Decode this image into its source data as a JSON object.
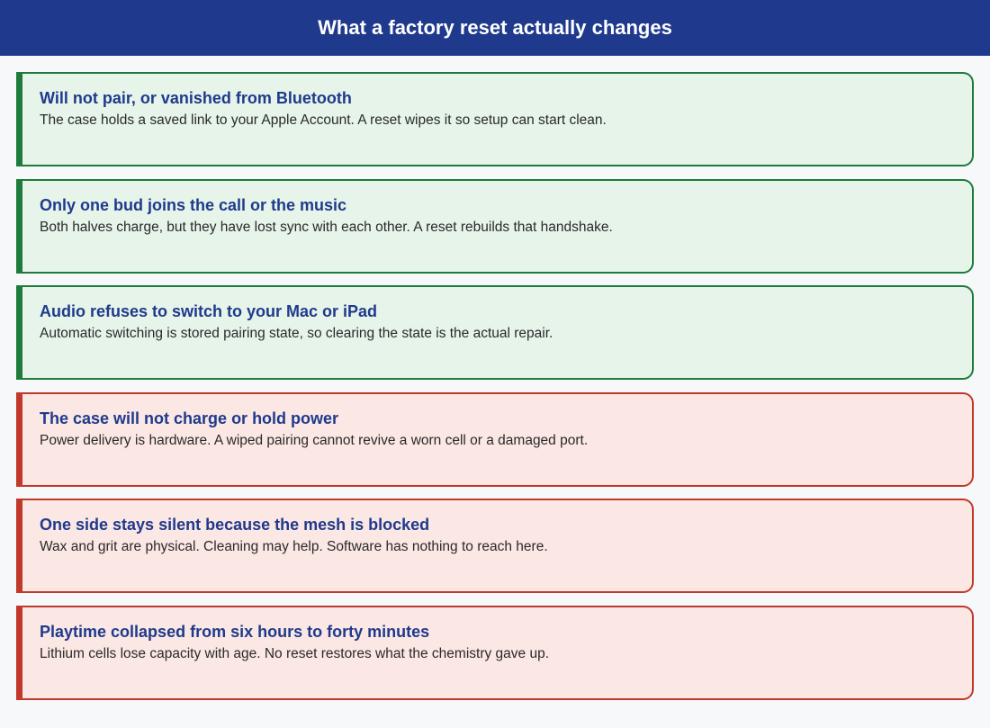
{
  "header": {
    "title": "What a factory reset actually changes"
  },
  "cards": [
    {
      "kind": "helps",
      "title": "Will not pair, or vanished from Bluetooth",
      "body": "The case holds a saved link to your Apple Account. A reset wipes it so setup can start clean."
    },
    {
      "kind": "helps",
      "title": "Only one bud joins the call or the music",
      "body": "Both halves charge, but they have lost sync with each other. A reset rebuilds that handshake."
    },
    {
      "kind": "helps",
      "title": "Audio refuses to switch to your Mac or iPad",
      "body": "Automatic switching is stored pairing state, so clearing the state is the actual repair."
    },
    {
      "kind": "does-not-help",
      "title": "The case will not charge or hold power",
      "body": "Power delivery is hardware. A wiped pairing cannot revive a worn cell or a damaged port."
    },
    {
      "kind": "does-not-help",
      "title": "One side stays silent because the mesh is blocked",
      "body": "Wax and grit are physical. Cleaning may help. Software has nothing to reach here."
    },
    {
      "kind": "does-not-help",
      "title": "Playtime collapsed from six hours to forty minutes",
      "body": "Lithium cells lose capacity with age. No reset restores what the chemistry gave up."
    }
  ],
  "colors": {
    "header_bg": "#1f3a8c",
    "helps_border": "#1e7b3c",
    "helps_bg": "#e6f4ea",
    "does_not_help_border": "#c0392b",
    "does_not_help_bg": "#fbe7e4",
    "title_text": "#1f3a8c"
  }
}
